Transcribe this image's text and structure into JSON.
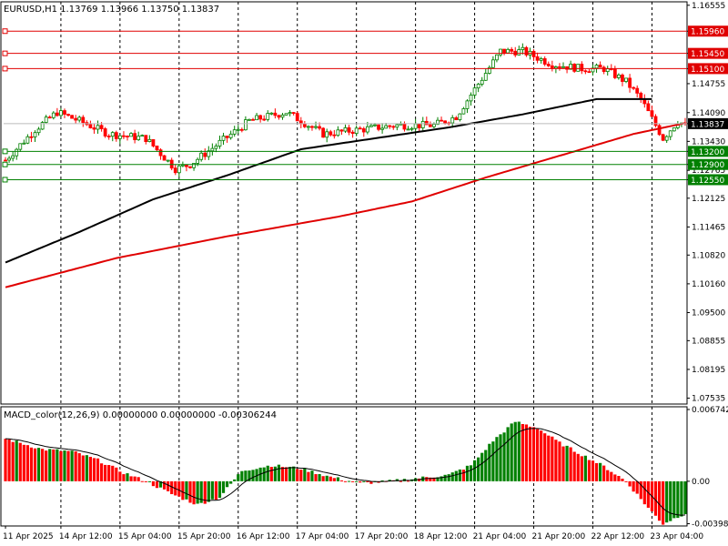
{
  "header": {
    "symbol_info": "EURUSD,H1  1.13769 1.13966 1.13750 1.13837",
    "macd_info": "MACD_color(12,26,9) 0.00000000 0.00000000 -0.00306244"
  },
  "colors": {
    "bull": "#008000",
    "bear": "#ff0000",
    "ma_fast": "#000000",
    "ma_slow": "#e00000",
    "support": "#008000",
    "resistance": "#e00000",
    "current": "#000000",
    "grid": "#000000",
    "signal": "#000000"
  },
  "chart_data": [
    {
      "type": "candlestick",
      "ylim": [
        1.074,
        1.1655
      ],
      "y_ticks": [
        "1.16555",
        "1.15960",
        "1.15450",
        "1.15100",
        "1.14755",
        "1.14090",
        "1.13837",
        "1.13430",
        "1.13200",
        "1.12900",
        "1.12765",
        "1.12550",
        "1.12125",
        "1.11465",
        "1.10820",
        "1.10160",
        "1.09500",
        "1.08855",
        "1.08195",
        "1.07535"
      ],
      "x_labels": [
        "11 Apr 2025",
        "14 Apr 12:00",
        "15 Apr 04:00",
        "15 Apr 20:00",
        "16 Apr 12:00",
        "17 Apr 04:00",
        "17 Apr 20:00",
        "18 Apr 12:00",
        "21 Apr 04:00",
        "21 Apr 20:00",
        "22 Apr 12:00",
        "23 Apr 04:00"
      ],
      "current_price": 1.13837,
      "price_anchors": [
        [
          0,
          1.13
        ],
        [
          8,
          1.137
        ],
        [
          14,
          1.141
        ],
        [
          20,
          1.139
        ],
        [
          28,
          1.136
        ],
        [
          38,
          1.135
        ],
        [
          46,
          1.128
        ],
        [
          50,
          1.129
        ],
        [
          58,
          1.134
        ],
        [
          66,
          1.139
        ],
        [
          76,
          1.141
        ],
        [
          86,
          1.136
        ],
        [
          96,
          1.137
        ],
        [
          106,
          1.138
        ],
        [
          116,
          1.138
        ],
        [
          122,
          1.14
        ],
        [
          126,
          1.145
        ],
        [
          134,
          1.155
        ],
        [
          140,
          1.155
        ],
        [
          148,
          1.152
        ],
        [
          156,
          1.151
        ],
        [
          162,
          1.151
        ],
        [
          168,
          1.148
        ],
        [
          172,
          1.144
        ],
        [
          176,
          1.138
        ],
        [
          178,
          1.135
        ],
        [
          182,
          1.139
        ],
        [
          184,
          1.138
        ]
      ],
      "ma_fast": [
        [
          0,
          1.1065
        ],
        [
          20,
          1.1135
        ],
        [
          40,
          1.121
        ],
        [
          60,
          1.1265
        ],
        [
          80,
          1.1325
        ],
        [
          100,
          1.135
        ],
        [
          120,
          1.1375
        ],
        [
          140,
          1.1405
        ],
        [
          160,
          1.144
        ],
        [
          175,
          1.144
        ]
      ],
      "ma_slow": [
        [
          0,
          1.1008
        ],
        [
          30,
          1.1075
        ],
        [
          60,
          1.1125
        ],
        [
          90,
          1.117
        ],
        [
          110,
          1.1205
        ],
        [
          130,
          1.126
        ],
        [
          150,
          1.131
        ],
        [
          170,
          1.136
        ],
        [
          184,
          1.1385
        ]
      ],
      "levels": [
        {
          "price": 1.1596,
          "label": "1.15960",
          "kind": "resistance"
        },
        {
          "price": 1.1545,
          "label": "1.15450",
          "kind": "resistance"
        },
        {
          "price": 1.151,
          "label": "1.15100",
          "kind": "resistance"
        },
        {
          "price": 1.132,
          "label": "1.13200",
          "kind": "support"
        },
        {
          "price": 1.129,
          "label": "1.12900",
          "kind": "support"
        },
        {
          "price": 1.1255,
          "label": "1.12550",
          "kind": "support"
        }
      ]
    },
    {
      "type": "bar",
      "ylim": [
        -0.0042,
        0.007
      ],
      "y_ticks": [
        "0.0067424",
        "0.00",
        "-0.003984"
      ],
      "macd_anchors": [
        [
          0,
          0.004
        ],
        [
          10,
          0.003
        ],
        [
          18,
          0.0028
        ],
        [
          25,
          0.002
        ],
        [
          32,
          0.0008
        ],
        [
          38,
          0.0
        ],
        [
          45,
          -0.0012
        ],
        [
          52,
          -0.0022
        ],
        [
          58,
          -0.0015
        ],
        [
          64,
          0.001
        ],
        [
          72,
          0.0015
        ],
        [
          80,
          0.0012
        ],
        [
          88,
          0.0004
        ],
        [
          96,
          -0.0002
        ],
        [
          104,
          0.0
        ],
        [
          112,
          0.0003
        ],
        [
          120,
          0.0006
        ],
        [
          126,
          0.0015
        ],
        [
          132,
          0.0038
        ],
        [
          138,
          0.0056
        ],
        [
          144,
          0.005
        ],
        [
          150,
          0.0036
        ],
        [
          156,
          0.0025
        ],
        [
          162,
          0.0014
        ],
        [
          168,
          0.0
        ],
        [
          174,
          -0.0025
        ],
        [
          178,
          -0.004
        ],
        [
          184,
          -0.003
        ]
      ]
    }
  ]
}
